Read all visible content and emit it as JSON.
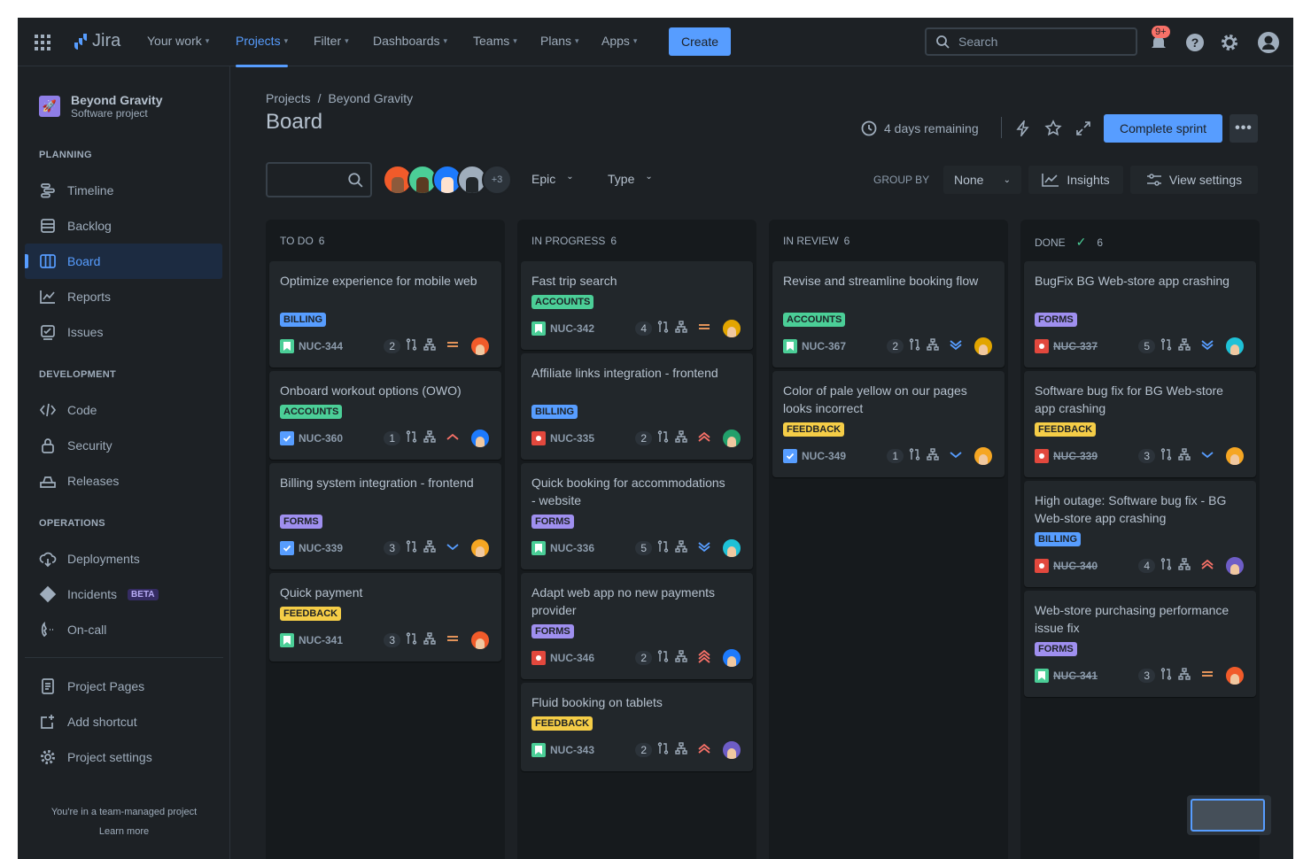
{
  "nav": {
    "app_name": "Jira",
    "items": [
      {
        "label": "Your work"
      },
      {
        "label": "Projects",
        "active": true
      },
      {
        "label": "Filter"
      },
      {
        "label": "Dashboards"
      },
      {
        "label": "Teams"
      },
      {
        "label": "Plans"
      },
      {
        "label": "Apps"
      }
    ],
    "create_label": "Create",
    "search_placeholder": "Search",
    "notification_count": "9+"
  },
  "sidebar": {
    "project_name": "Beyond Gravity",
    "project_type": "Software project",
    "sections": [
      {
        "heading": "PLANNING",
        "items": [
          {
            "label": "Timeline",
            "icon": "timeline-icon"
          },
          {
            "label": "Backlog",
            "icon": "backlog-icon"
          },
          {
            "label": "Board",
            "icon": "board-icon",
            "selected": true
          },
          {
            "label": "Reports",
            "icon": "reports-icon"
          },
          {
            "label": "Issues",
            "icon": "issues-icon"
          }
        ]
      },
      {
        "heading": "DEVELOPMENT",
        "items": [
          {
            "label": "Code",
            "icon": "code-icon"
          },
          {
            "label": "Security",
            "icon": "lock-icon"
          },
          {
            "label": "Releases",
            "icon": "releases-icon"
          }
        ]
      },
      {
        "heading": "OPERATIONS",
        "items": [
          {
            "label": "Deployments",
            "icon": "deployments-icon"
          },
          {
            "label": "Incidents",
            "icon": "incidents-icon",
            "badge": "BETA"
          },
          {
            "label": "On-call",
            "icon": "on-call-icon"
          }
        ]
      }
    ],
    "bottom_items": [
      {
        "label": "Project Pages",
        "icon": "pages-icon"
      },
      {
        "label": "Add shortcut",
        "icon": "add-shortcut-icon"
      },
      {
        "label": "Project settings",
        "icon": "gear-icon"
      }
    ],
    "footer_text": "You're in a team-managed project",
    "learn_more": "Learn more"
  },
  "header": {
    "breadcrumb": [
      "Projects",
      "Beyond Gravity"
    ],
    "title": "Board",
    "sprint_remaining": "4 days remaining",
    "complete_sprint_label": "Complete sprint"
  },
  "filters": {
    "avatars_more": "+3",
    "epic_label": "Epic",
    "type_label": "Type",
    "group_by_label": "GROUP BY",
    "group_by_value": "None",
    "insights_label": "Insights",
    "view_settings_label": "View settings"
  },
  "colors": {
    "accent": "#579dff",
    "BILLING": "#579dff",
    "ACCOUNTS": "#4bce97",
    "FORMS": "#9f8fef",
    "FEEDBACK": "#f5cd47"
  },
  "columns": [
    {
      "title": "TO DO",
      "count": "6",
      "cards": [
        {
          "title": "Optimize experience for mobile web",
          "label": "BILLING",
          "type": "story",
          "key": "NUC-344",
          "count": "2",
          "priority": "medium",
          "avatar": "#f15b2a"
        },
        {
          "title": "Onboard workout options (OWO)",
          "label": "ACCOUNTS",
          "type": "task",
          "key": "NUC-360",
          "count": "1",
          "priority": "high",
          "avatar": "#1d7afc"
        },
        {
          "title": "Billing system integration - frontend",
          "label": "FORMS",
          "type": "task",
          "key": "NUC-339",
          "count": "3",
          "priority": "low",
          "avatar": "#f5a623"
        },
        {
          "title": "Quick payment",
          "label": "FEEDBACK",
          "type": "story",
          "key": "NUC-341",
          "count": "3",
          "priority": "medium",
          "avatar": "#f15b2a"
        }
      ]
    },
    {
      "title": "IN PROGRESS",
      "count": "6",
      "cards": [
        {
          "title": "Fast trip search",
          "label": "ACCOUNTS",
          "type": "story",
          "key": "NUC-342",
          "count": "4",
          "priority": "medium",
          "avatar": "#e2a500"
        },
        {
          "title": "Affiliate links integration - frontend",
          "label": "BILLING",
          "type": "bug",
          "key": "NUC-335",
          "count": "2",
          "priority": "highest",
          "avatar": "#22a06b"
        },
        {
          "title": "Quick booking for accommodations - website",
          "label": "FORMS",
          "type": "story",
          "key": "NUC-336",
          "count": "5",
          "priority": "lowest",
          "avatar": "#1fc1d6"
        },
        {
          "title": "Adapt web app no new payments provider",
          "label": "FORMS",
          "type": "bug",
          "key": "NUC-346",
          "count": "2",
          "priority": "blocker",
          "avatar": "#1d7afc"
        },
        {
          "title": "Fluid booking on tablets",
          "label": "FEEDBACK",
          "type": "story",
          "key": "NUC-343",
          "count": "2",
          "priority": "highest",
          "avatar": "#6e5dc6"
        }
      ]
    },
    {
      "title": "IN REVIEW",
      "count": "6",
      "cards": [
        {
          "title": "Revise and streamline booking flow",
          "label": "ACCOUNTS",
          "type": "story",
          "key": "NUC-367",
          "count": "2",
          "priority": "lowest",
          "avatar": "#e2a500"
        },
        {
          "title": "Color of pale yellow on our pages looks incorrect",
          "label": "FEEDBACK",
          "type": "task",
          "key": "NUC-349",
          "count": "1",
          "priority": "low",
          "avatar": "#f5a623"
        }
      ]
    },
    {
      "title": "DONE",
      "count": "6",
      "done": true,
      "cards": [
        {
          "title": "BugFix BG Web-store app crashing",
          "label": "FORMS",
          "type": "bug",
          "key": "NUC-337",
          "count": "5",
          "priority": "lowest",
          "avatar": "#1fc1d6"
        },
        {
          "title": "Software bug fix for BG Web-store app crashing",
          "label": "FEEDBACK",
          "type": "bug",
          "key": "NUC-339",
          "count": "3",
          "priority": "low",
          "avatar": "#f5a623"
        },
        {
          "title": "High outage: Software bug fix - BG Web-store app crashing",
          "label": "BILLING",
          "type": "bug",
          "key": "NUC-340",
          "count": "4",
          "priority": "highest",
          "avatar": "#6e5dc6"
        },
        {
          "title": "Web-store purchasing performance issue fix",
          "label": "FORMS",
          "type": "story",
          "key": "NUC-341",
          "count": "3",
          "priority": "medium",
          "avatar": "#f15b2a"
        }
      ]
    }
  ]
}
